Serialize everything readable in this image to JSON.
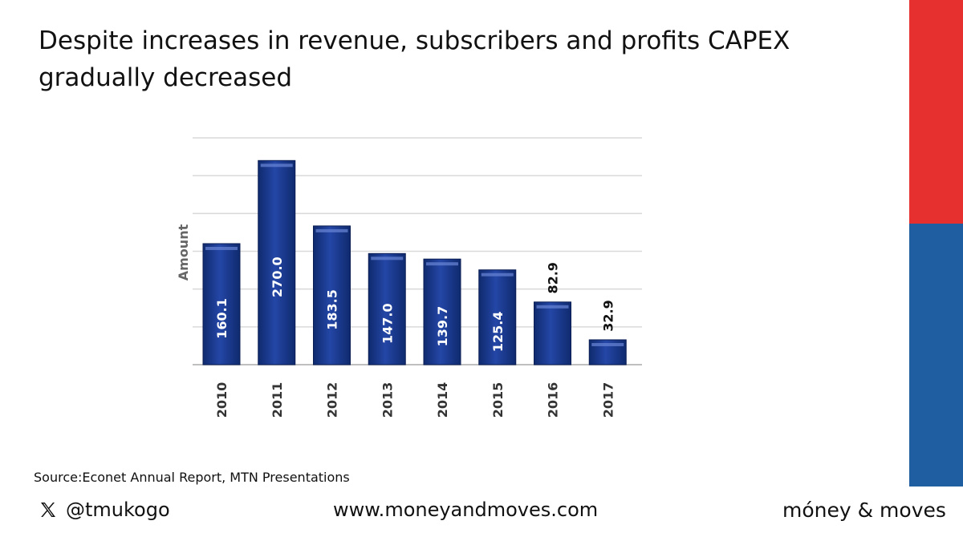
{
  "title": "Despite increases in revenue, subscribers and profits CAPEX gradually decreased",
  "source": "Source:Econet Annual Report, MTN Presentations",
  "footer": {
    "handle": "@tmukogo",
    "website": "www.moneyandmoves.com",
    "brand": "móney & moves"
  },
  "colors": {
    "bar": "#1b3a8a",
    "stripe_red": "#e63030",
    "stripe_blue": "#1f5ea0",
    "grid": "#d9d9d9"
  },
  "icons": {
    "social": "x-logo-icon"
  },
  "chart_data": {
    "type": "bar",
    "categories": [
      "2010",
      "2011",
      "2012",
      "2013",
      "2014",
      "2015",
      "2016",
      "2017"
    ],
    "values": [
      160.1,
      270.0,
      183.5,
      147.0,
      139.7,
      125.4,
      82.9,
      32.9
    ],
    "labels": [
      "160.1",
      "270.0",
      "183.5",
      "147.0",
      "139.7",
      "125.4",
      "82.9",
      "32.9"
    ],
    "title": "",
    "xlabel": "",
    "ylabel": "Amount",
    "ylim": [
      0,
      300
    ],
    "grid": true,
    "legend": "none"
  }
}
